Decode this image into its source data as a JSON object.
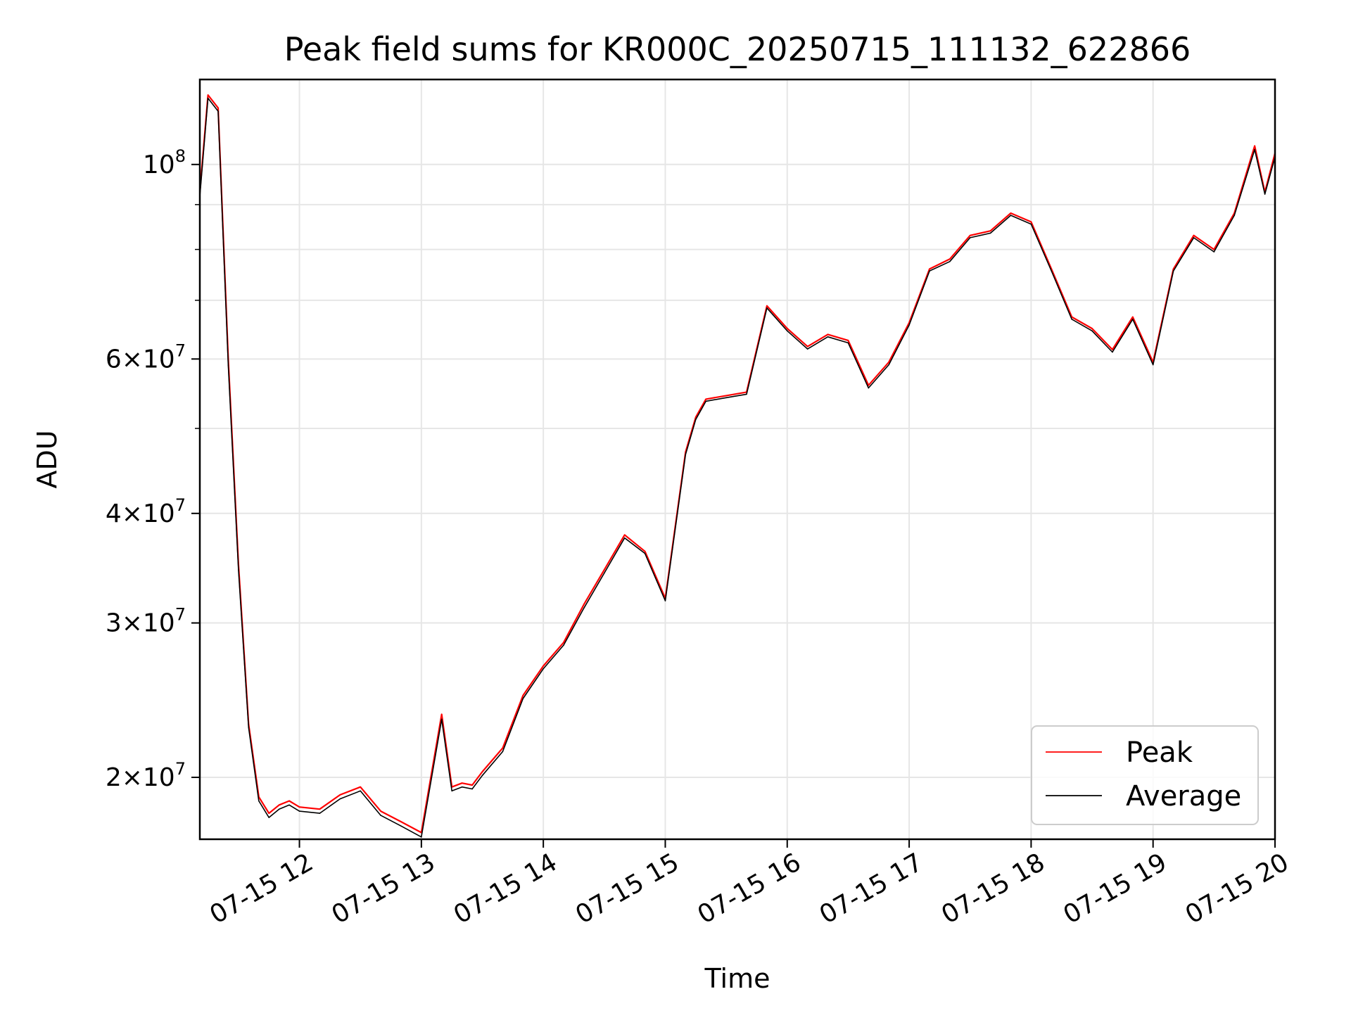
{
  "chart_data": {
    "type": "line",
    "title": "Peak field sums for KR000C_20250715_111132_622866",
    "xlabel": "Time",
    "ylabel": "ADU",
    "yscale": "log",
    "grid": true,
    "legend_position": "lower-right",
    "xlim": [
      "07-15 11:11",
      "07-15 20:00"
    ],
    "ylim": [
      17000000,
      125000000
    ],
    "x_ticks": [
      "07-15 12",
      "07-15 13",
      "07-15 14",
      "07-15 15",
      "07-15 16",
      "07-15 17",
      "07-15 18",
      "07-15 19",
      "07-15 20"
    ],
    "y_ticks": [
      {
        "value": 20000000,
        "mantissa": "2",
        "exponent": "7"
      },
      {
        "value": 30000000,
        "mantissa": "3",
        "exponent": "7"
      },
      {
        "value": 40000000,
        "mantissa": "4",
        "exponent": "7"
      },
      {
        "value": 60000000,
        "mantissa": "6",
        "exponent": "7"
      },
      {
        "value": 100000000,
        "mantissa": "",
        "exponent": "8"
      }
    ],
    "x": [
      "11:11",
      "11:15",
      "11:20",
      "11:25",
      "11:30",
      "11:35",
      "11:40",
      "11:45",
      "11:50",
      "11:55",
      "12:00",
      "12:10",
      "12:20",
      "12:30",
      "12:40",
      "12:50",
      "13:00",
      "13:10",
      "13:15",
      "13:20",
      "13:25",
      "13:30",
      "13:40",
      "13:50",
      "14:00",
      "14:10",
      "14:20",
      "14:30",
      "14:40",
      "14:50",
      "15:00",
      "15:10",
      "15:15",
      "15:20",
      "15:30",
      "15:40",
      "15:50",
      "16:00",
      "16:10",
      "16:20",
      "16:30",
      "16:40",
      "16:50",
      "17:00",
      "17:10",
      "17:20",
      "17:30",
      "17:40",
      "17:50",
      "18:00",
      "18:10",
      "18:20",
      "18:30",
      "18:40",
      "18:50",
      "19:00",
      "19:10",
      "19:20",
      "19:30",
      "19:40",
      "19:50",
      "19:55",
      "20:00"
    ],
    "series": [
      {
        "name": "Peak",
        "color": "#ff0000",
        "values": [
          93,
          120,
          116,
          60,
          35,
          23,
          19,
          18.2,
          18.6,
          18.8,
          18.5,
          18.4,
          19.1,
          19.5,
          18.3,
          17.8,
          17.3,
          23.6,
          19.5,
          19.7,
          19.6,
          20.3,
          21.6,
          24.8,
          26.8,
          28.5,
          31.5,
          34.5,
          37.8,
          36.2,
          32.0,
          47.0,
          51.5,
          54.0,
          54.5,
          55.0,
          69.0,
          65.0,
          62.0,
          64.0,
          63.0,
          56.0,
          59.5,
          66.0,
          76.0,
          78.0,
          83.0,
          84.0,
          88.0,
          86.0,
          76.0,
          67.0,
          65.0,
          61.5,
          67.0,
          59.5,
          76.0,
          83.0,
          80.0,
          88.0,
          105.0,
          93.0,
          103.0
        ]
      },
      {
        "name": "Average",
        "color": "#000000",
        "values": [
          92,
          119,
          115,
          59,
          34.5,
          22.8,
          18.8,
          18.0,
          18.4,
          18.6,
          18.3,
          18.2,
          18.9,
          19.3,
          18.1,
          17.6,
          17.1,
          23.3,
          19.3,
          19.5,
          19.4,
          20.1,
          21.4,
          24.6,
          26.6,
          28.3,
          31.2,
          34.2,
          37.5,
          36.0,
          31.8,
          46.7,
          51.2,
          53.7,
          54.2,
          54.7,
          68.6,
          64.6,
          61.6,
          63.6,
          62.6,
          55.6,
          59.1,
          65.6,
          75.6,
          77.5,
          82.5,
          83.5,
          87.5,
          85.5,
          75.6,
          66.6,
          64.6,
          61.1,
          66.6,
          59.1,
          75.6,
          82.5,
          79.5,
          87.5,
          104.0,
          92.5,
          102.0
        ]
      }
    ]
  }
}
